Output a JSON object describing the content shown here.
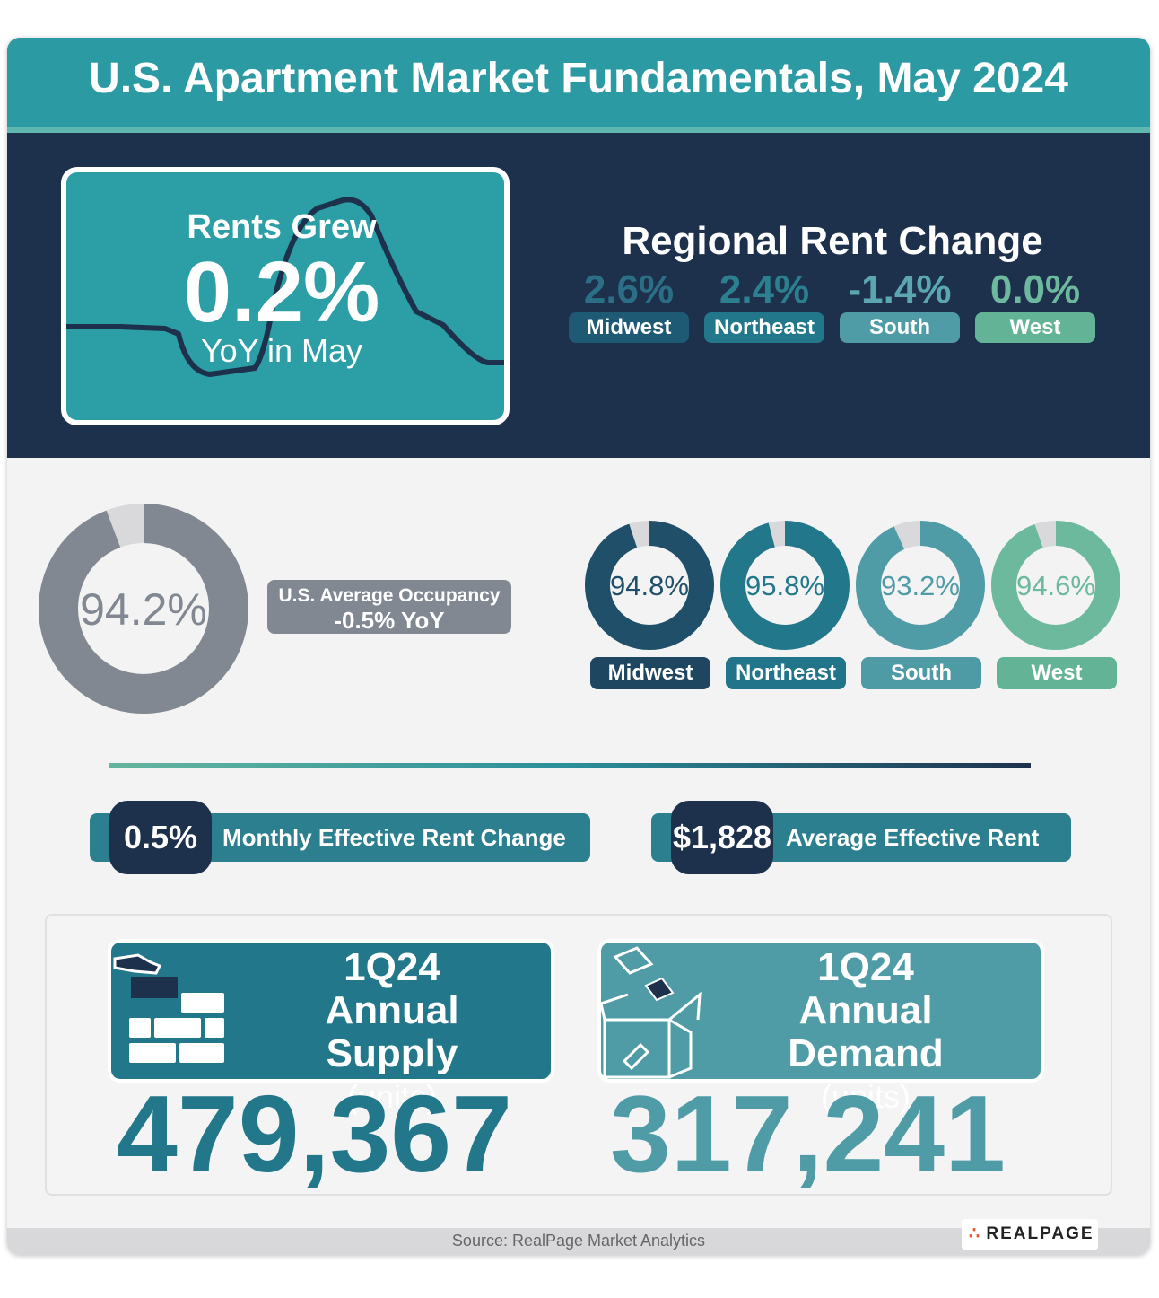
{
  "title": "U.S. Apartment Market Fundamentals, May 2024",
  "rent_box": {
    "line1": "Rents Grew",
    "value": "0.2%",
    "line3": "YoY in May"
  },
  "regional_rent": {
    "title": "Regional Rent Change",
    "items": [
      {
        "value": "2.6%",
        "region": "Midwest",
        "color": "#2b6f86",
        "pill": "#1f5a75"
      },
      {
        "value": "2.4%",
        "region": "Northeast",
        "color": "#2b7f8f",
        "pill": "#22788a"
      },
      {
        "value": "-1.4%",
        "region": "South",
        "color": "#5aa7b2",
        "pill": "#4f9ca7"
      },
      {
        "value": "0.0%",
        "region": "West",
        "color": "#6cb99e",
        "pill": "#63b497"
      }
    ]
  },
  "occupancy": {
    "us_value": "94.2%",
    "us_fraction": 0.942,
    "us_label": "U.S. Average Occupancy",
    "us_change": "-0.5% YoY",
    "regions": [
      {
        "value": "94.8%",
        "fraction": 0.948,
        "region": "Midwest",
        "color": "#1f4f69",
        "pill": "#1e4660"
      },
      {
        "value": "95.8%",
        "fraction": 0.958,
        "region": "Northeast",
        "color": "#22788a",
        "pill": "#22748a"
      },
      {
        "value": "93.2%",
        "fraction": 0.932,
        "region": "South",
        "color": "#4f9ca7",
        "pill": "#4e9aa5"
      },
      {
        "value": "94.6%",
        "fraction": 0.946,
        "region": "West",
        "color": "#6cb99e",
        "pill": "#63b497"
      }
    ]
  },
  "stats": {
    "monthly_value": "0.5%",
    "monthly_label": "Monthly Effective Rent Change",
    "avg_value": "$1,828",
    "avg_label": "Average Effective Rent"
  },
  "supply": {
    "period": "1Q24",
    "label": "Annual Supply",
    "unit": "(units)",
    "value": "479,367"
  },
  "demand": {
    "period": "1Q24",
    "label": "Annual Demand",
    "unit": "(units)",
    "value": "317,241"
  },
  "source": "Source: RealPage Market Analytics",
  "logo": "REALPAGE"
}
